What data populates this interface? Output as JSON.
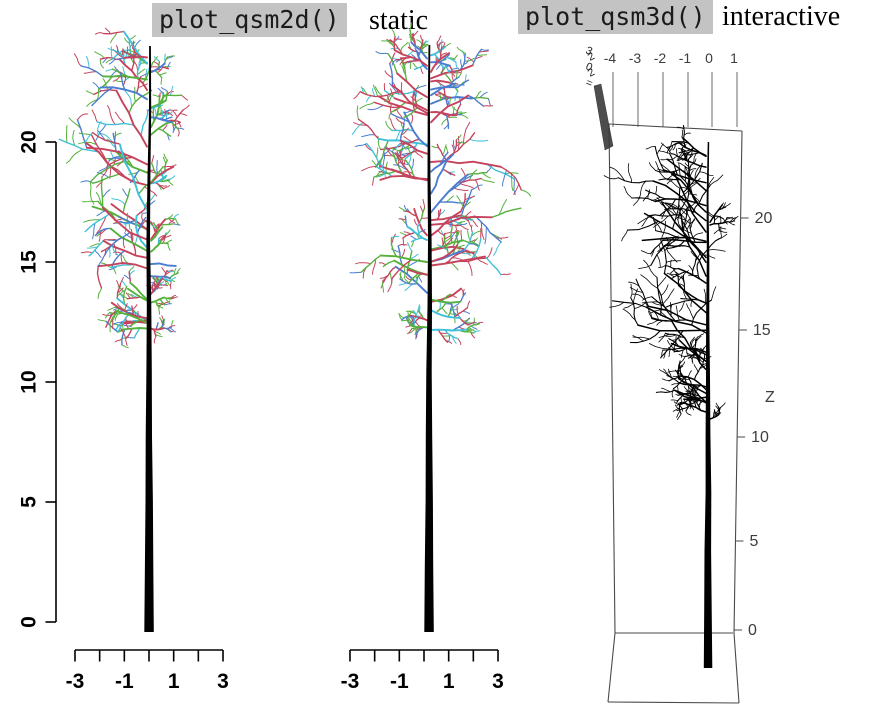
{
  "header": {
    "left_code": "plot_qsm2d()",
    "left_tag": "static",
    "right_code": "plot_qsm3d()",
    "right_tag": "interactive"
  },
  "colors": {
    "code_bg": "#c3c3c3",
    "code_text": "#1b1b1b",
    "axis_2d": "#000000",
    "axis_3d_line": "#4a4a4a",
    "axis_3d_text": "#3d3d3d",
    "trunk": "#000000",
    "branch_red": "#c5435c",
    "branch_green": "#55b13c",
    "branch_blue": "#4a7cd0",
    "branch_cyan": "#3fbfd8"
  },
  "chart_data": [
    {
      "panel": "qsm2d-left",
      "type": "line",
      "title": "plot_qsm2d()",
      "subtitle": "static",
      "grid": false,
      "legend": "none",
      "x_axis": {
        "range": [
          -3,
          3
        ],
        "ticks": [
          -3,
          -2,
          -1,
          0,
          1,
          2,
          3
        ],
        "tick_labels": [
          "-3",
          "-1",
          "1",
          "3"
        ]
      },
      "y_axis": {
        "range": [
          0,
          20
        ],
        "ticks": [
          0,
          5,
          10,
          15,
          20
        ],
        "tick_labels": [
          "0",
          "5",
          "10",
          "15",
          "20"
        ]
      },
      "tree": {
        "trunk_x_m": 0,
        "base_m": 0,
        "top_m": 24,
        "crown_base_m": 12.5,
        "lean": "left",
        "palette": [
          "red",
          "green",
          "blue",
          "cyan"
        ],
        "trunk_color": "black"
      }
    },
    {
      "panel": "qsm2d-middle",
      "type": "line",
      "title": "plot_qsm2d()",
      "subtitle": "static",
      "grid": false,
      "legend": "none",
      "x_axis": {
        "range": [
          -3,
          3
        ],
        "ticks": [
          -3,
          -2,
          -1,
          0,
          1,
          2,
          3
        ],
        "tick_labels": [
          "-3",
          "-1",
          "1",
          "3"
        ]
      },
      "y_axis": {
        "range": [
          0,
          20
        ],
        "ticks": [],
        "tick_labels": []
      },
      "tree": {
        "trunk_x_m": 0,
        "base_m": 0,
        "top_m": 24,
        "crown_base_m": 12,
        "lean": "balanced",
        "palette": [
          "red",
          "green",
          "blue",
          "cyan"
        ],
        "trunk_color": "black"
      }
    },
    {
      "panel": "qsm3d",
      "type": "line",
      "title": "plot_qsm3d()",
      "subtitle": "interactive",
      "grid": false,
      "legend": "none",
      "x_axis": {
        "ticks": [
          -4,
          -3,
          -2,
          -1,
          0,
          1
        ],
        "tick_labels": [
          "-4",
          "-3",
          "-2",
          "-1",
          "0",
          "1"
        ]
      },
      "y_axis": {
        "note": "edge-on, labels overlap",
        "garbled_glyphs": [
          "3",
          "2",
          "0",
          "2",
          "="
        ]
      },
      "z_axis": {
        "label": "Z",
        "ticks": [
          0,
          5,
          10,
          15,
          20
        ],
        "tick_labels": [
          "0",
          "5",
          "10",
          "15",
          "20"
        ]
      },
      "tree": {
        "trunk_x_m": 0,
        "base_m": 0,
        "top_m": 24,
        "lean": "left",
        "palette": [
          "black"
        ],
        "trunk_color": "black"
      }
    }
  ]
}
